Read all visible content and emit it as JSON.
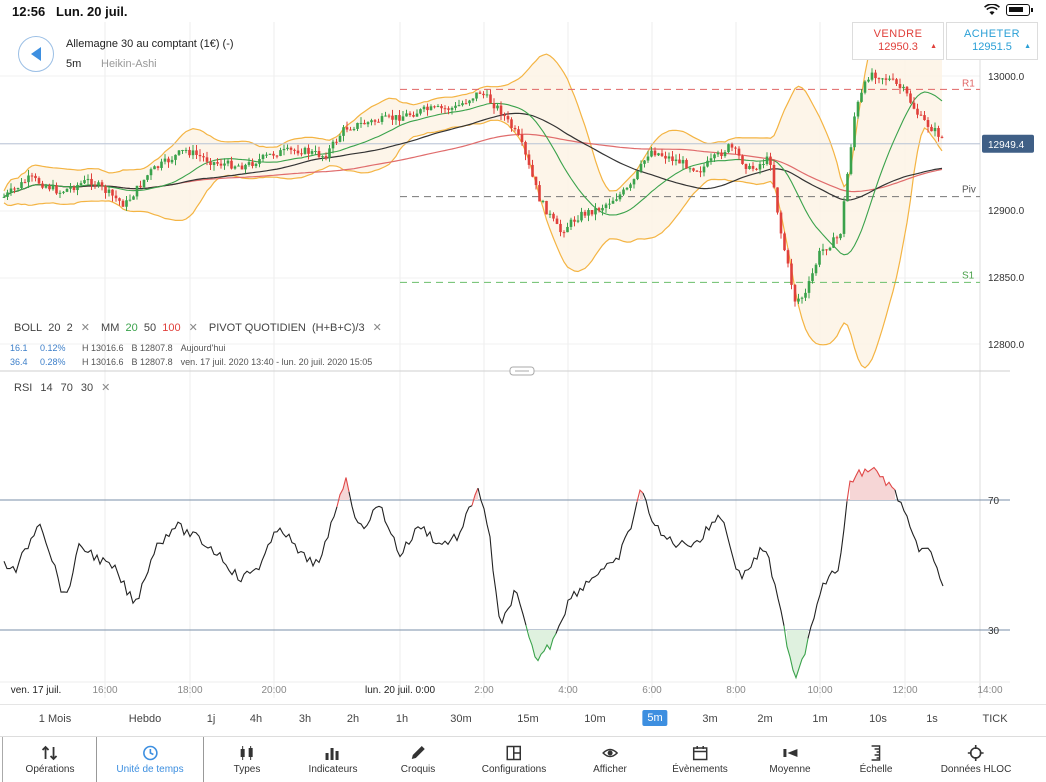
{
  "status": {
    "time": "12:56",
    "date": "Lun. 20 juil."
  },
  "instrument": {
    "name": "Allemagne 30 au comptant (1€) (-)",
    "timeframe": "5m",
    "chart_type": "Heikin-Ashi"
  },
  "trade": {
    "sell": {
      "label": "VENDRE",
      "price": "12950.3"
    },
    "buy": {
      "label": "ACHETER",
      "price": "12951.5"
    }
  },
  "indicators": {
    "boll": {
      "name": "BOLL",
      "period": "20",
      "dev": "2"
    },
    "mm": {
      "name": "MM",
      "p1": "20",
      "p2": "50",
      "p3": "100"
    },
    "pivot": {
      "name": "PIVOT",
      "kind": "QUOTIDIEN",
      "formula": "(H+B+C)/3"
    },
    "close": "✕"
  },
  "info_rows": [
    {
      "a": "16.1",
      "b": "0.12%",
      "h": "H 13016.6",
      "lo": "B 12807.8",
      "range": "Aujourd'hui"
    },
    {
      "a": "36.4",
      "b": "0.28%",
      "h": "H 13016.6",
      "lo": "B 12807.8",
      "range": "ven. 17 juil. 2020 13:40 - lun. 20 juil. 2020 15:05"
    }
  ],
  "rsi": {
    "name": "RSI",
    "period": "14",
    "upper": "70",
    "lower": "30"
  },
  "price_axis": [
    "13000.0",
    "12900.0",
    "12850.0",
    "12800.0"
  ],
  "current_price": "12949.4",
  "pivot_labels": {
    "r1": "R1",
    "piv": "Piv",
    "s1": "S1"
  },
  "rsi_axis": [
    "70",
    "30"
  ],
  "time_axis": [
    "ven. 17 juil.",
    "16:00",
    "18:00",
    "20:00",
    "lun. 20 juil. 0:00",
    "2:00",
    "4:00",
    "6:00",
    "8:00",
    "10:00",
    "12:00",
    "14:00"
  ],
  "timeframes": [
    "1 Mois",
    "Hebdo",
    "1j",
    "4h",
    "3h",
    "2h",
    "1h",
    "30m",
    "15m",
    "10m",
    "5m",
    "3m",
    "2m",
    "1m",
    "10s",
    "1s",
    "TICK"
  ],
  "active_timeframe": "5m",
  "toolbar": [
    {
      "label": "Opérations",
      "icon": "sort-arrows-icon"
    },
    {
      "label": "Unité de temps",
      "icon": "clock-icon"
    },
    {
      "label": "Types",
      "icon": "candlestick-icon"
    },
    {
      "label": "Indicateurs",
      "icon": "bar-chart-icon"
    },
    {
      "label": "Croquis",
      "icon": "pencil-icon"
    },
    {
      "label": "Configurations",
      "icon": "layout-icon"
    },
    {
      "label": "Afficher",
      "icon": "eye-icon"
    },
    {
      "label": "Évènements",
      "icon": "calendar-icon"
    },
    {
      "label": "Moyenne",
      "icon": "average-icon"
    },
    {
      "label": "Échelle",
      "icon": "scale-icon"
    },
    {
      "label": "Données HLOC",
      "icon": "crosshair-icon"
    }
  ],
  "colors": {
    "accent": "#3d8fe0",
    "up": "#3aa24b",
    "down": "#e0403b",
    "boll": "#f4b443",
    "sell": "#e0403b",
    "buy": "#2a9fd6"
  }
}
